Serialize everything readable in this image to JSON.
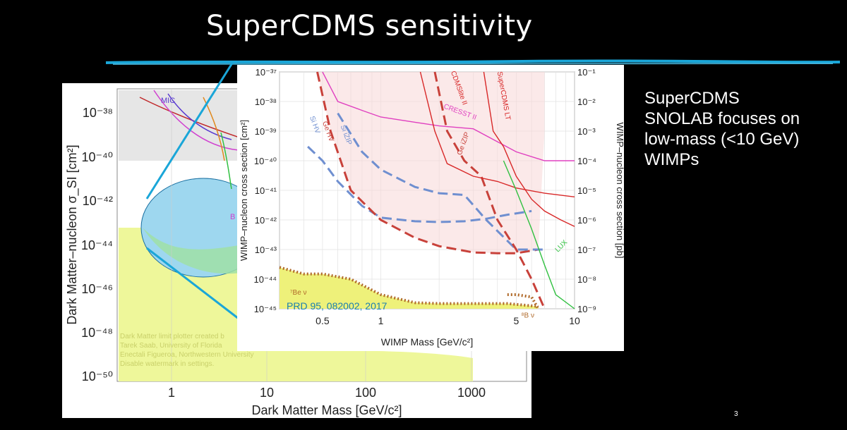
{
  "slide": {
    "title": "SuperCDMS sensitivity",
    "side_text_lines": [
      "SuperCDMS",
      "SNOLAB focuses on",
      "low-mass (<10 GeV)",
      "WIMPs"
    ],
    "page_number": "3"
  },
  "background_plot": {
    "xlabel": "Dark Matter Mass [GeV/c²]",
    "ylabel": "Dark Matter–nucleon σ_SI [cm²]",
    "x_ticks": [
      "1",
      "10",
      "100",
      "1000"
    ],
    "y_ticks": [
      "10⁻³⁸",
      "10⁻⁴⁰",
      "10⁻⁴²",
      "10⁻⁴⁴",
      "10⁻⁴⁶",
      "10⁻⁴⁸",
      "10⁻⁵⁰"
    ],
    "curve_labels": [
      "MIC",
      "B"
    ],
    "watermark_lines": [
      "Dark Matter limit plotter created b",
      "Tarek Saab, University of Florida",
      "Enectali Figueroa, Northwestern University",
      "Disable watermark in settings."
    ]
  },
  "chart_data": {
    "type": "line",
    "xlabel": "WIMP Mass [GeV/c²]",
    "ylabel": "WIMP–nucleon cross section [cm²]",
    "ylabel_right": "WIMP–nucleon cross section [pb]",
    "x_scale": "log",
    "y_scale": "log",
    "xlim": [
      0.3,
      10
    ],
    "ylim": [
      1e-45,
      1e-37
    ],
    "x_ticks": [
      "0.5",
      "1",
      "5",
      "10"
    ],
    "y_ticks_left": [
      "10⁻³⁷",
      "10⁻³⁸",
      "10⁻³⁹",
      "10⁻⁴⁰",
      "10⁻⁴¹",
      "10⁻⁴²",
      "10⁻⁴³",
      "10⁻⁴⁴",
      "10⁻⁴⁵"
    ],
    "y_ticks_right": [
      "10⁻¹",
      "10⁻²",
      "10⁻³",
      "10⁻⁴",
      "10⁻⁵",
      "10⁻⁶",
      "10⁻⁷",
      "10⁻⁸",
      "10⁻⁹"
    ],
    "annotation": "PRD 95, 082002, 2017",
    "series": [
      {
        "name": "Si HV",
        "color": "#6f8fd0",
        "dash": "dashed",
        "x": [
          0.42,
          0.5,
          0.6,
          0.8,
          1.0,
          1.5,
          2.0,
          2.7,
          3.5,
          4.5,
          6.0
        ],
        "y": [
          3e-40,
          1e-40,
          2e-41,
          3e-42,
          1.2e-42,
          9e-43,
          8.5e-43,
          9e-43,
          1.1e-42,
          1.5e-42,
          2e-42
        ]
      },
      {
        "name": "Ge HV",
        "color": "#c8413a",
        "dash": "dashed",
        "x": [
          0.47,
          0.55,
          0.7,
          1.0,
          1.5,
          2.0,
          3.0,
          4.0,
          5.0,
          6.5
        ],
        "y": [
          1e-37,
          1e-39,
          1e-41,
          1e-42,
          2.5e-43,
          1.3e-43,
          8e-44,
          7.5e-44,
          7.5e-44,
          1e-43
        ]
      },
      {
        "name": "Si iZIP",
        "color": "#6f8fd0",
        "dash": "dashed",
        "x": [
          0.6,
          0.8,
          1.0,
          1.5,
          2.0,
          2.7,
          3.5,
          5.0,
          7.0
        ],
        "y": [
          4e-39,
          2e-40,
          5e-41,
          1.3e-41,
          8e-42,
          7e-42,
          1e-42,
          1e-43,
          1e-43
        ]
      },
      {
        "name": "Ge iZIP",
        "color": "#c8413a",
        "dash": "dashed",
        "x": [
          1.9,
          2.2,
          2.7,
          3.3,
          4.0,
          5.0,
          6.0,
          7.0
        ],
        "y": [
          1e-37,
          1e-39,
          1e-40,
          3e-41,
          1e-42,
          1e-43,
          1e-44,
          1e-45
        ]
      },
      {
        "name": "CRESST II",
        "color": "#e040c0",
        "dash": "solid",
        "x": [
          0.5,
          0.6,
          0.8,
          1.0,
          1.5,
          2.0,
          3.0,
          5.0,
          7.0,
          10.0
        ],
        "y": [
          1e-37,
          1e-38,
          5e-39,
          3e-39,
          2e-39,
          1.5e-39,
          1.2e-39,
          2e-40,
          1e-40,
          1e-40
        ]
      },
      {
        "name": "CDMSlite II",
        "color": "#d82828",
        "dash": "solid",
        "x": [
          1.6,
          1.9,
          2.2,
          3.0,
          4.0,
          5.0,
          7.0,
          10.0
        ],
        "y": [
          1e-37,
          1e-39,
          8e-41,
          3e-41,
          2e-41,
          1.2e-41,
          8e-42,
          6e-42
        ]
      },
      {
        "name": "SuperCDMS LT",
        "color": "#d82828",
        "dash": "solid",
        "x": [
          3.4,
          3.8,
          4.3,
          5.0,
          6.0,
          7.0,
          8.5,
          10.0
        ],
        "y": [
          1e-37,
          1e-39,
          3e-40,
          3e-41,
          5e-42,
          2e-42,
          1e-42,
          6e-43
        ]
      },
      {
        "name": "LUX",
        "color": "#30c040",
        "dash": "solid",
        "x": [
          4.3,
          5.0,
          6.0,
          7.0,
          8.0,
          10.0
        ],
        "y": [
          1e-40,
          1e-41,
          5e-43,
          3e-44,
          3e-45,
          1e-45
        ]
      },
      {
        "name": "⁷Be ν",
        "color": "#b06a2a",
        "dash": "dotted",
        "x": [
          0.3,
          0.4,
          0.5,
          0.7,
          1.0,
          1.5,
          2.0,
          3.0,
          4.5,
          6.5
        ],
        "y": [
          2.5e-44,
          1.5e-44,
          1.5e-44,
          1e-44,
          3e-45,
          1.6e-45,
          1.5e-45,
          1.5e-45,
          1.5e-45,
          1.2e-45
        ]
      },
      {
        "name": "⁸B ν",
        "color": "#b06a2a",
        "dash": "dotted",
        "x": [
          4.5,
          5.0,
          6.0,
          6.5
        ],
        "y": [
          3e-45,
          3e-45,
          2.5e-45,
          1e-45
        ]
      }
    ]
  }
}
